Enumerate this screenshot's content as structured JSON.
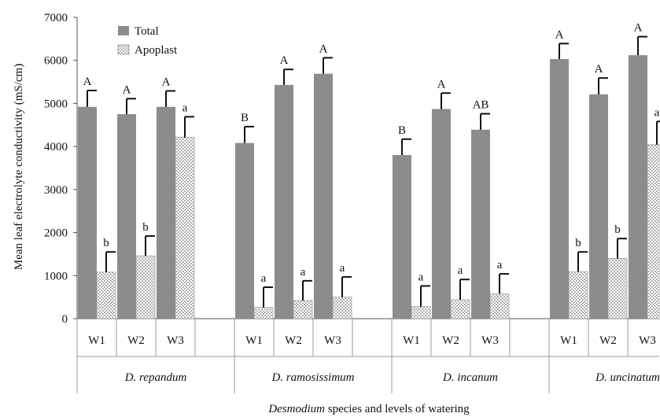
{
  "chart_data": {
    "type": "bar",
    "xlabel_italic": "Desmodium",
    "xlabel_rest": " species and levels of watering",
    "ylabel": "Mean leaf electrolyte conductivity (mS/cm)",
    "ylim": [
      0,
      7000
    ],
    "yticks": [
      0,
      1000,
      2000,
      3000,
      4000,
      5000,
      6000,
      7000
    ],
    "grid": false,
    "legend_position": "top-left",
    "groups": [
      {
        "species": "D. repandum",
        "levels": [
          "W1",
          "W2",
          "W3"
        ],
        "total": [
          4920,
          4750,
          4920
        ],
        "total_err": [
          380,
          360,
          370
        ],
        "total_letters": [
          "A",
          "A",
          "A"
        ],
        "apoplast": [
          1080,
          1460,
          4210
        ],
        "apoplast_err": [
          470,
          460,
          480
        ],
        "apoplast_letters": [
          "b",
          "b",
          "a"
        ]
      },
      {
        "species": "D. ramosissimum",
        "levels": [
          "W1",
          "W2",
          "W3"
        ],
        "total": [
          4080,
          5430,
          5690
        ],
        "total_err": [
          380,
          360,
          370
        ],
        "total_letters": [
          "B",
          "A",
          "A"
        ],
        "apoplast": [
          260,
          420,
          500
        ],
        "apoplast_err": [
          470,
          460,
          470
        ],
        "apoplast_letters": [
          "a",
          "a",
          "a"
        ]
      },
      {
        "species": "D. incanum",
        "levels": [
          "W1",
          "W2",
          "W3"
        ],
        "total": [
          3800,
          4870,
          4390
        ],
        "total_err": [
          370,
          370,
          370
        ],
        "total_letters": [
          "B",
          "A",
          "AB"
        ],
        "apoplast": [
          280,
          440,
          580
        ],
        "apoplast_err": [
          480,
          470,
          460
        ],
        "apoplast_letters": [
          "a",
          "a",
          "a"
        ]
      },
      {
        "species": "D. uncinatum",
        "levels": [
          "W1",
          "W2",
          "W3"
        ],
        "total": [
          6030,
          5210,
          6120
        ],
        "total_err": [
          360,
          380,
          430
        ],
        "total_letters": [
          "A",
          "A",
          "A"
        ],
        "apoplast": [
          1090,
          1400,
          4040
        ],
        "apoplast_err": [
          460,
          460,
          540
        ],
        "apoplast_letters": [
          "b",
          "b",
          "a"
        ]
      }
    ],
    "series": [
      {
        "name": "Total",
        "color": "#8c8c8c",
        "pattern": "solid"
      },
      {
        "name": "Apoplast",
        "color": "#ffffff",
        "pattern": "dots"
      }
    ]
  }
}
